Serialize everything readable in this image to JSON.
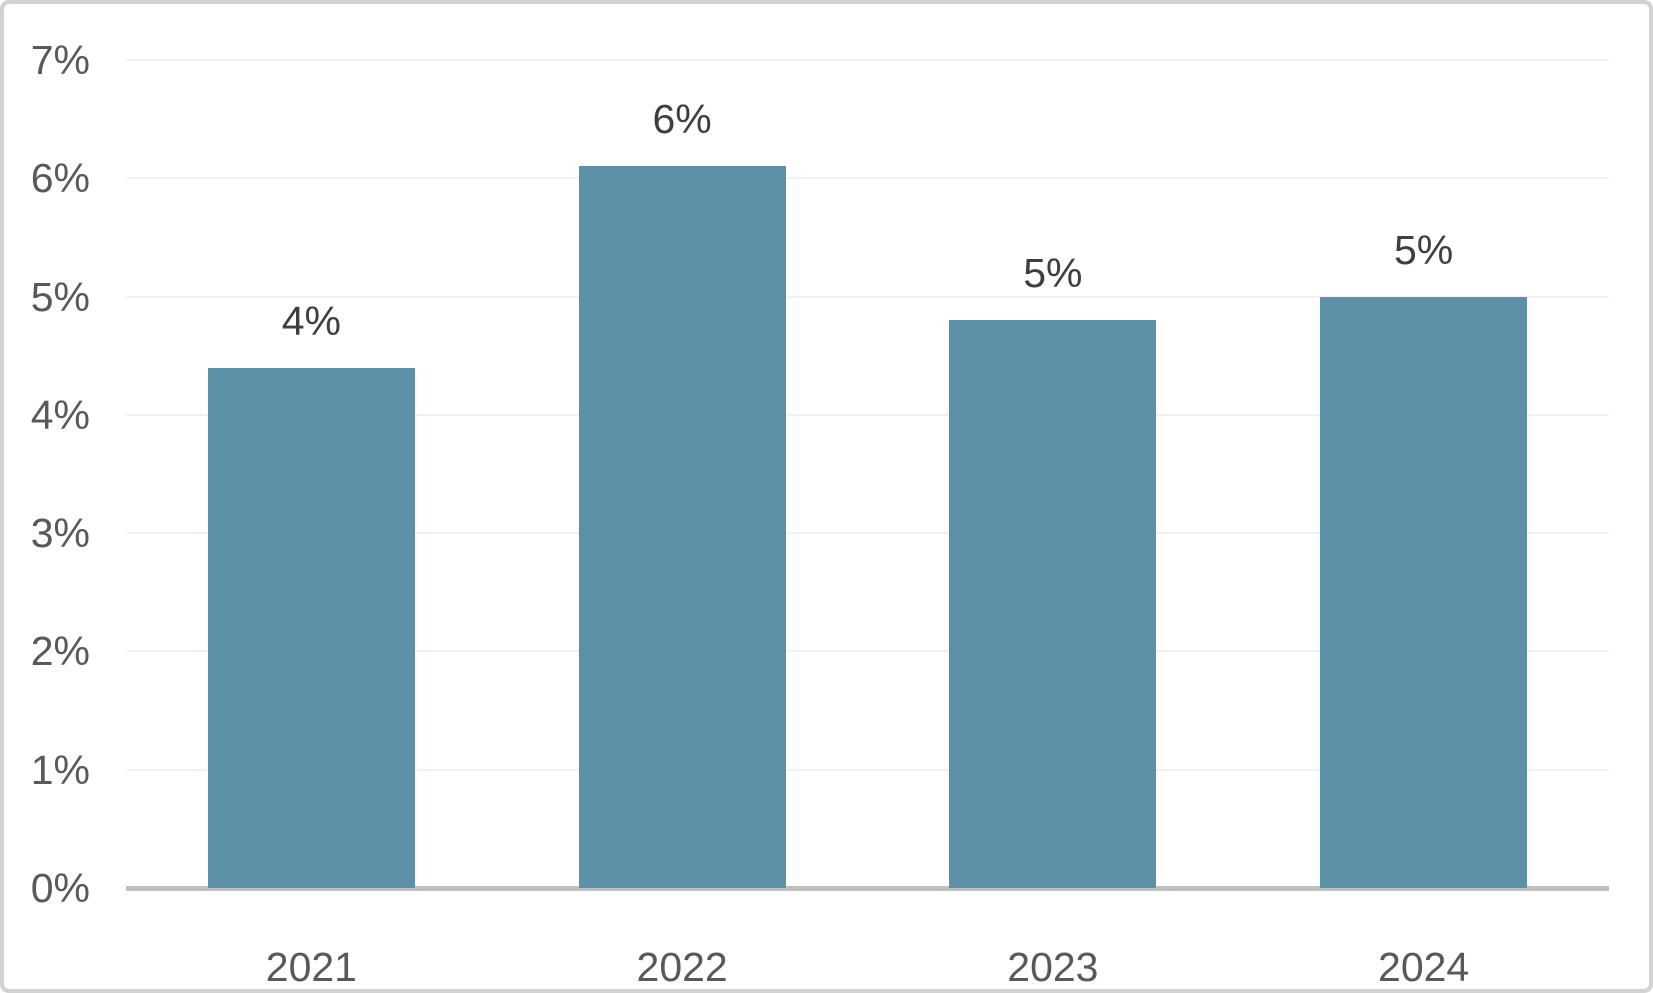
{
  "chart_data": {
    "type": "bar",
    "title": "",
    "xlabel": "",
    "ylabel": "",
    "categories": [
      "2021",
      "2022",
      "2023",
      "2024"
    ],
    "values": [
      4.4,
      6.1,
      4.8,
      5.0
    ],
    "bar_labels": [
      "4%",
      "6%",
      "5%",
      "5%"
    ],
    "ylim": [
      0,
      7
    ],
    "yticks": [
      0,
      1,
      2,
      3,
      4,
      5,
      6,
      7
    ],
    "ytick_labels": [
      "0%",
      "1%",
      "2%",
      "3%",
      "4%",
      "5%",
      "6%",
      "7%"
    ],
    "grid": true,
    "legend": false,
    "legend_position": "none",
    "colors": {
      "bar": "#5B90A7",
      "gridline": "#F1F1F1",
      "axis_line": "#BFBFBF",
      "axis_tick_label": "#595959",
      "data_label": "#3F3F3F",
      "canvas_border": "#D2D2D2",
      "background": "#FFFFFF"
    }
  }
}
